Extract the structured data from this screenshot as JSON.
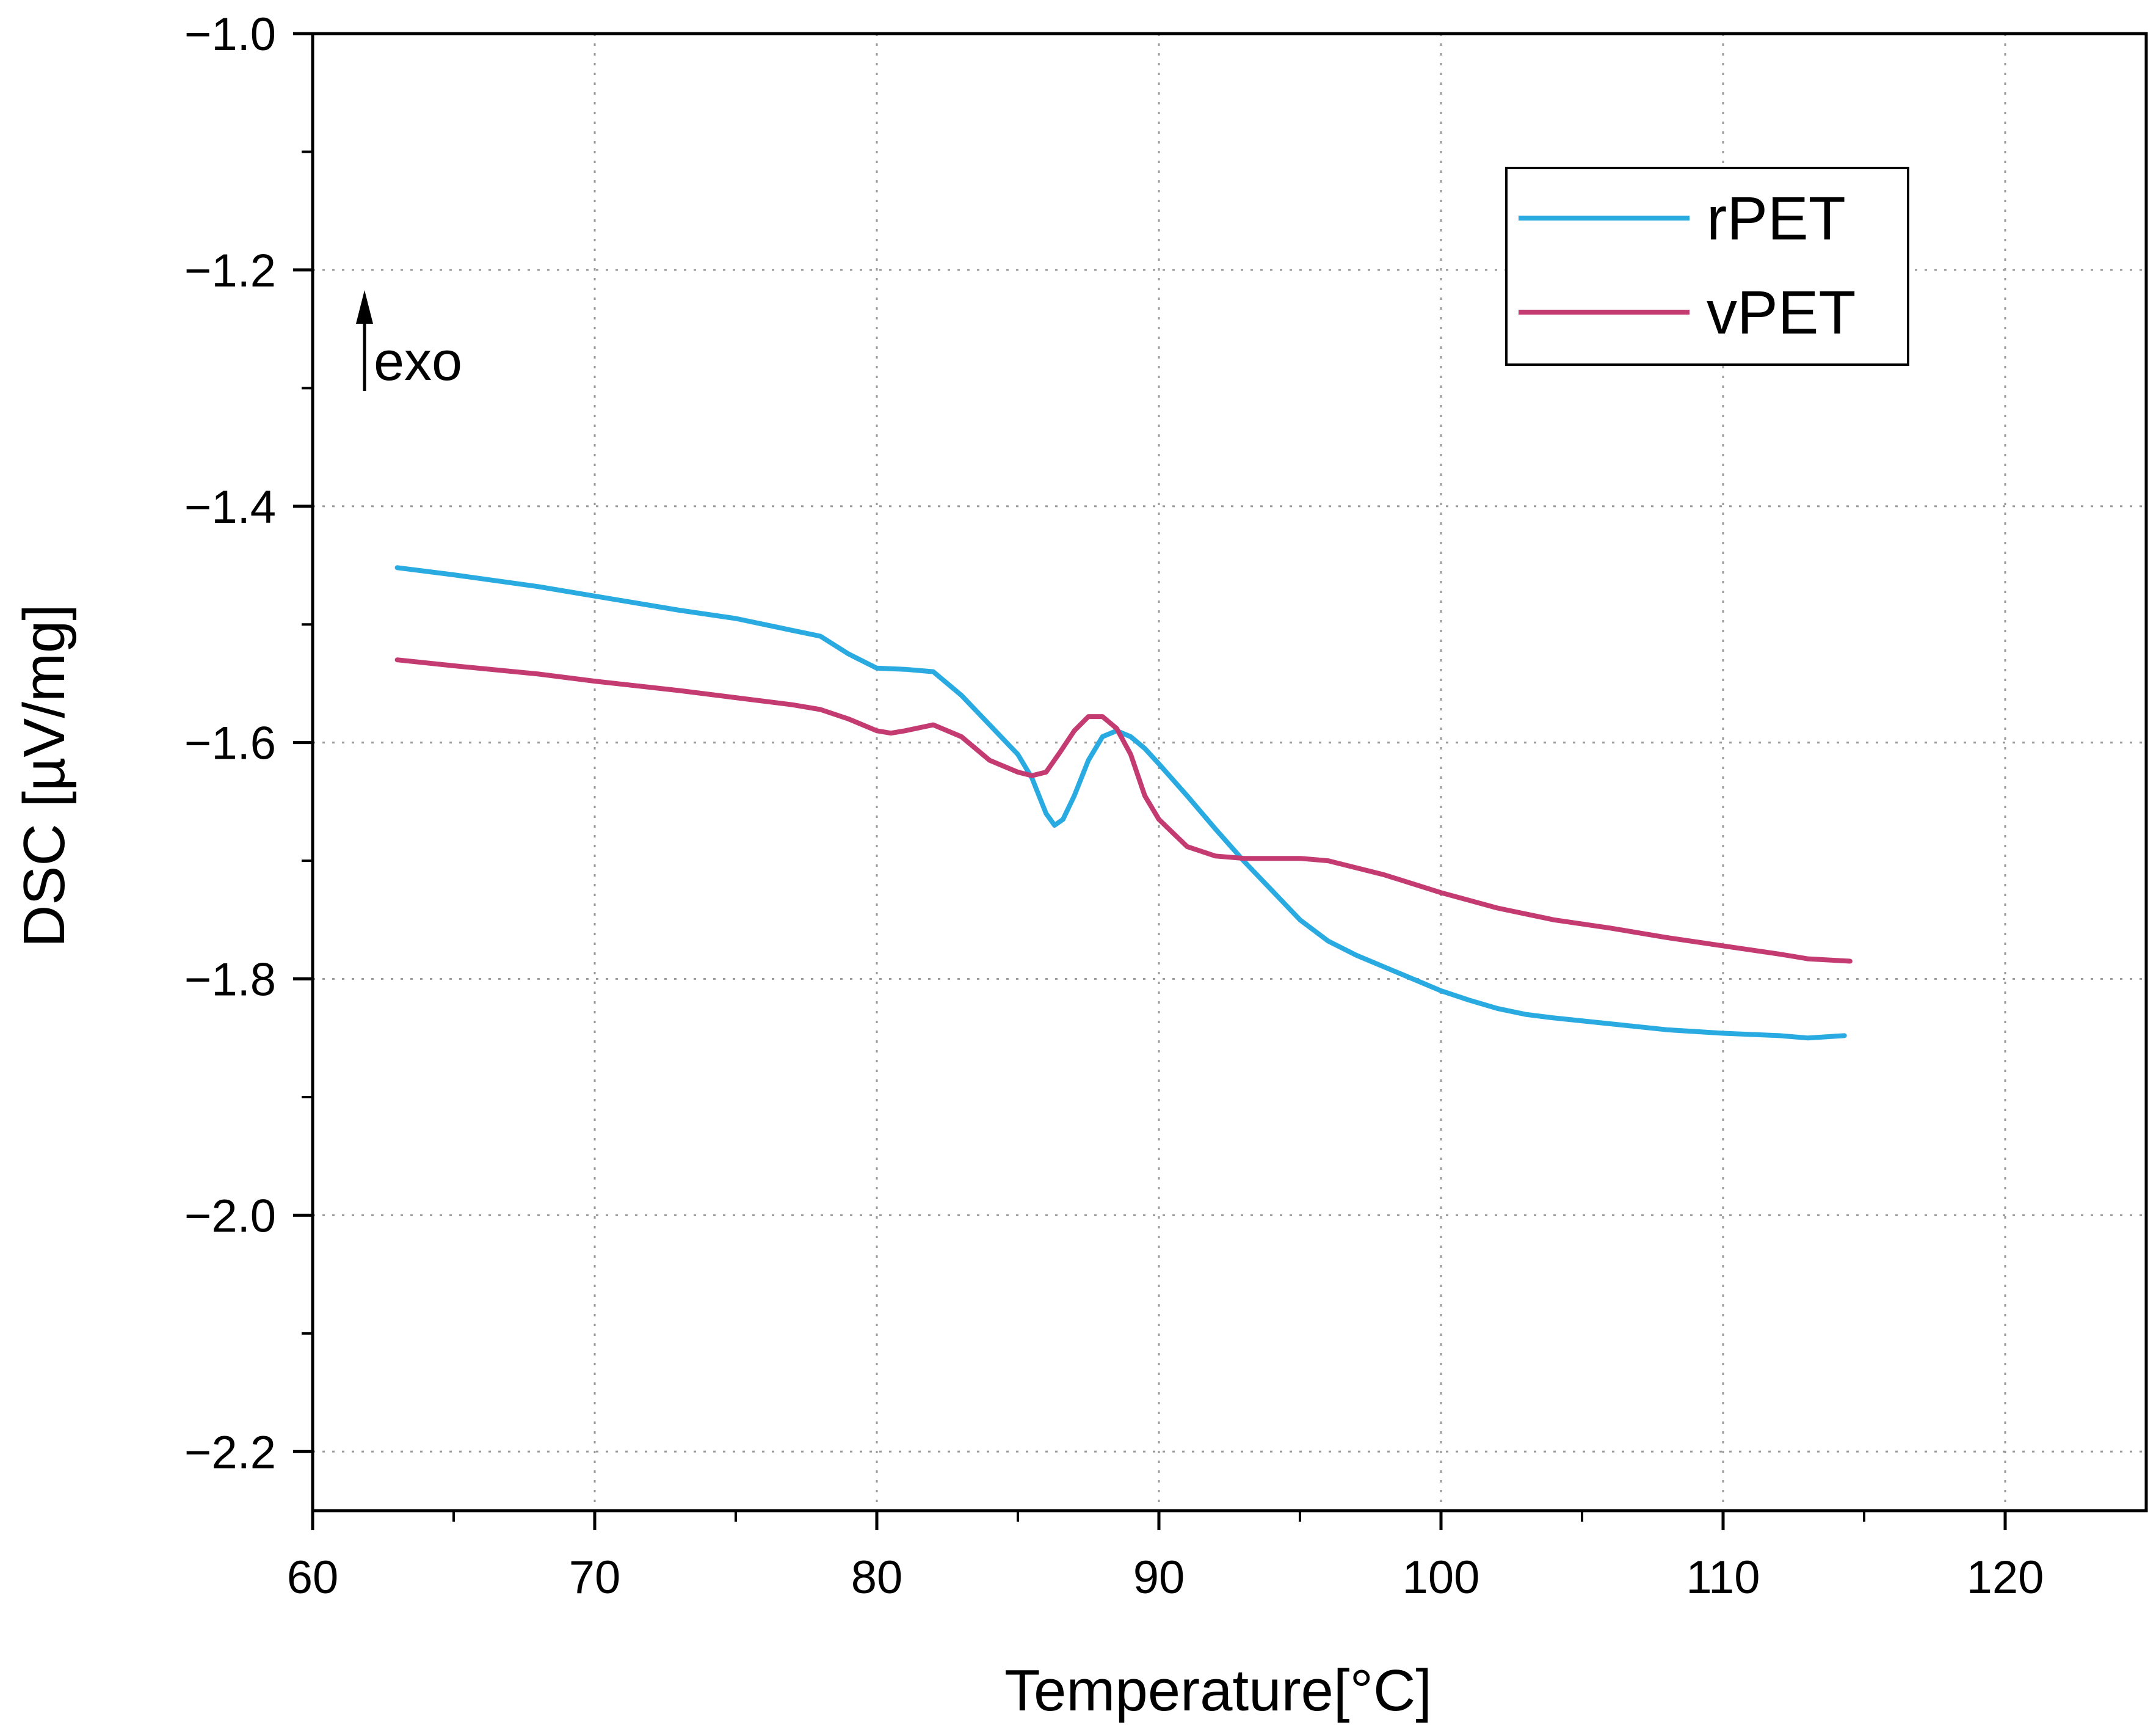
{
  "chart_data": {
    "type": "line",
    "title": "",
    "xlabel": "Temperature[°C]",
    "ylabel": "DSC [µV/mg]",
    "xlim": [
      60,
      125
    ],
    "ylim": [
      -2.25,
      -1.0
    ],
    "xticks": [
      60,
      70,
      80,
      90,
      100,
      110,
      120
    ],
    "xtick_labels": [
      "60",
      "70",
      "80",
      "90",
      "100",
      "110",
      "120"
    ],
    "yticks": [
      -1.0,
      -1.2,
      -1.4,
      -1.6,
      -1.8,
      -2.0,
      -2.2
    ],
    "ytick_labels": [
      "−1.0",
      "−1.2",
      "−1.4",
      "−1.6",
      "−1.8",
      "−2.0",
      "−2.2"
    ],
    "grid": true,
    "legend_position": "top-right",
    "annotation": {
      "text": "exo",
      "arrow": "up"
    },
    "series": [
      {
        "name": "rPET",
        "color": "#29abe2",
        "x": [
          63.0,
          65,
          68,
          70,
          73,
          75,
          77,
          78,
          79,
          80,
          81,
          82,
          83,
          84,
          85,
          85.5,
          86,
          86.3,
          86.6,
          87,
          87.5,
          88,
          88.5,
          89,
          89.5,
          90,
          91,
          92,
          93,
          94,
          95,
          96,
          97,
          98,
          99,
          100,
          101,
          102,
          103,
          104,
          106,
          108,
          110,
          112,
          113,
          114.3
        ],
        "y": [
          -1.452,
          -1.458,
          -1.468,
          -1.476,
          -1.488,
          -1.495,
          -1.505,
          -1.51,
          -1.525,
          -1.537,
          -1.538,
          -1.54,
          -1.56,
          -1.585,
          -1.61,
          -1.63,
          -1.66,
          -1.67,
          -1.665,
          -1.645,
          -1.615,
          -1.595,
          -1.59,
          -1.595,
          -1.605,
          -1.618,
          -1.645,
          -1.673,
          -1.7,
          -1.725,
          -1.75,
          -1.768,
          -1.78,
          -1.79,
          -1.8,
          -1.81,
          -1.818,
          -1.825,
          -1.83,
          -1.833,
          -1.838,
          -1.843,
          -1.846,
          -1.848,
          -1.85,
          -1.848
        ]
      },
      {
        "name": "vPET",
        "color": "#c43b72",
        "x": [
          63.0,
          65,
          68,
          70,
          73,
          75,
          77,
          78,
          79,
          80,
          80.5,
          81,
          82,
          83,
          84,
          85,
          85.5,
          86,
          86.5,
          87,
          87.5,
          88,
          88.5,
          89,
          89.5,
          90,
          91,
          92,
          93,
          94,
          95,
          96,
          98,
          100,
          102,
          104,
          106,
          108,
          110,
          112,
          113,
          114.5
        ],
        "y": [
          -1.53,
          -1.535,
          -1.542,
          -1.548,
          -1.556,
          -1.562,
          -1.568,
          -1.572,
          -1.58,
          -1.59,
          -1.592,
          -1.59,
          -1.585,
          -1.595,
          -1.615,
          -1.625,
          -1.628,
          -1.625,
          -1.608,
          -1.59,
          -1.578,
          -1.578,
          -1.588,
          -1.61,
          -1.645,
          -1.665,
          -1.688,
          -1.696,
          -1.698,
          -1.698,
          -1.698,
          -1.7,
          -1.712,
          -1.727,
          -1.74,
          -1.75,
          -1.757,
          -1.765,
          -1.772,
          -1.779,
          -1.783,
          -1.785
        ]
      }
    ]
  }
}
